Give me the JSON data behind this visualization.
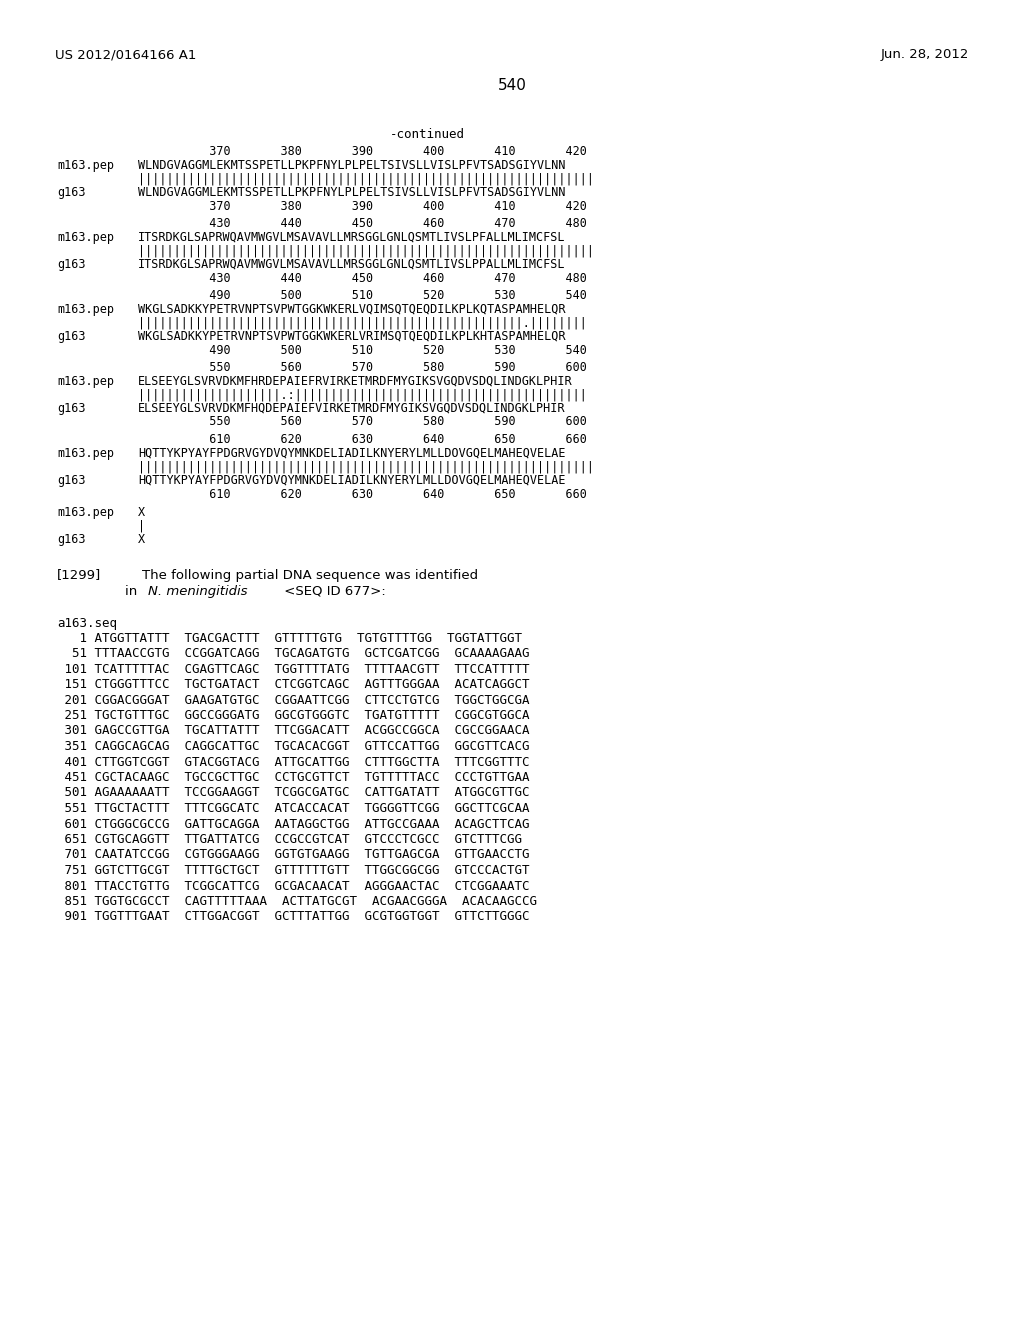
{
  "background_color": "#ffffff",
  "header_left": "US 2012/0164166 A1",
  "header_right": "Jun. 28, 2012",
  "page_number": "540",
  "continued_label": "-continued",
  "blocks": [
    {
      "numline": "          370       380       390       400       410       420",
      "m_seq": "WLNDGVAGGMLEKMTSSPETLLPKPFNYLPLPELTSIVSLLVISLPFVTSADSGIYVLNN",
      "match": "||||||||||||||||||||||||||||||||||||||||||||||||||||||||||||||||",
      "g_seq": "WLNDGVAGGMLEKMTSSPETLLPKPFNYLPLPELTSIVSLLVISLPFVTSADSGIYVLNN"
    },
    {
      "numline": "          430       440       450       460       470       480",
      "m_seq": "ITSRDKGLSAPRWQAVMWGVLMSAVAVLLMRSGGLGNLQSMTLIVSLPFALLMLIMCFSL",
      "match": "|||||||||||||||||||||||||||||||||||||||||||||||||||||||||||||||| ",
      "g_seq": "ITSRDKGLSAPRWQAVMWGVLMSAVAVLLMRSGGLGNLQSMTLIVSLPPALLMLIMCFSL"
    },
    {
      "numline": "          490       500       510       520       530       540",
      "m_seq": "WKGLSADKKYPETRVNPTSVPWTGGKWKERLVQIMSQTQEQDILKPLKQTASPAMHELQR",
      "match": "||||||||||||||||||||||||||||||||||||||||||||||||||||||.||||||||",
      "g_seq": "WKGLSADKKYPETRVNPTSVPWTGGKWKERLVRIMSQTQEQDILKPLKHTASPAMHELQR"
    },
    {
      "numline": "          550       560       570       580       590       600",
      "m_seq": "ELSEEYGLSVRVDKMFHRDEPAIEFRVIRKETMRDFMYGIKSVGQDVSDQLINDGKLPHIR",
      "match": "||||||||||||||||||||.:|||||||||||||||||||||||||||||||||||||||||",
      "g_seq": "ELSEEYGLSVRVDKMFHQDEPAIEFVIRKETMRDFMYGIKSVGQDVSDQLINDGKLPHIR"
    },
    {
      "numline": "          610       620       630       640       650       660",
      "m_seq": "HQTTYKPYAYFPDGRVGYDVQYMNKDELIADILKNYERYLMLLDOVGQELMAHEQVELAE",
      "match": "||||||||||||||||||||||||||||||||||||||||||||||||||||||||||||||||",
      "g_seq": "HQTTYKPYAYFPDGRVGYDVQYMNKDELIADILKNYERYLMLLDOVGQELMAHEQVELAE"
    }
  ],
  "dna_lines": [
    "   1 ATGGTTATTT  TGACGACTTT  GTTTTTGTG  TGTGTTTTGG  TGGTATTGGT",
    "  51 TTTAACCGTG  CCGGATCAGG  TGCAGATGTG  GCTCGATCGG  GCAAAAGAAG",
    " 101 TCATTTTTAC  CGAGTTCAGC  TGGTTTTATG  TTTTAACGTT  TTCCATTTTT",
    " 151 CTGGGTTTCC  TGCTGATACT  CTCGGTCAGC  AGTTTGGGAA  ACATCAGGCT",
    " 201 CGGACGGGAT  GAAGATGTGC  CGGAATTCGG  CTTCCTGTCG  TGGCTGGCGA",
    " 251 TGCTGTTTGC  GGCCGGGATG  GGCGTGGGTC  TGATGTTTTT  CGGCGTGGCA",
    " 301 GAGCCGTTGA  TGCATTATTT  TTCGGACATT  ACGGCCGGCA  CGCCGGAACA",
    " 351 CAGGCAGCAG  CAGGCATTGC  TGCACACGGT  GTTCCATTGG  GGCGTTCACG",
    " 401 CTTGGTCGGT  GTACGGTACG  ATTGCATTGG  CTTTGGCTTA  TTTCGGTTTC",
    " 451 CGCTACAAGC  TGCCGCTTGC  CCTGCGTTCT  TGTTTTTACC  CCCTGTTGAA",
    " 501 AGAAAAAATT  TCCGGAAGGT  TCGGCGATGC  CATTGATATT  ATGGCGTTGC",
    " 551 TTGCTACTTT  TTTCGGCATC  ATCACCACAT  TGGGGTTCGG  GGCTTCGCAA",
    " 601 CTGGGCGCCG  GATTGCAGGA  AATAGGCTGG  ATTGCCGAAA  ACAGCTTCAG",
    " 651 CGTGCAGGTT  TTGATTATCG  CCGCCGTCAT  GTCCCTCGCC  GTCTTTCGG",
    " 701 CAATATCCGG  CGTGGGAAGG  GGTGTGAAGG  TGTTGAGCGA  GTTGAACCTG",
    " 751 GGTCTTGCGT  TTTTGCTGCT  GTTTTTTGTT  TTGGCGGCGG  GTCCCACTGT",
    " 801 TTACCTGTTG  TCGGCATTCG  GCGACAACAT  AGGGAACTAC  CTCGGAAATC",
    " 851 TGGTGCGCCT  CAGTTTTTAAA  ACTTATGCGT  ACGAACGGGA  ACACAAGCCG",
    " 901 TGGTTTGAAT  CTTGGACGGT  GCTTTATTGG  GCGTGGTGGT  GTTCTTGGGC"
  ]
}
